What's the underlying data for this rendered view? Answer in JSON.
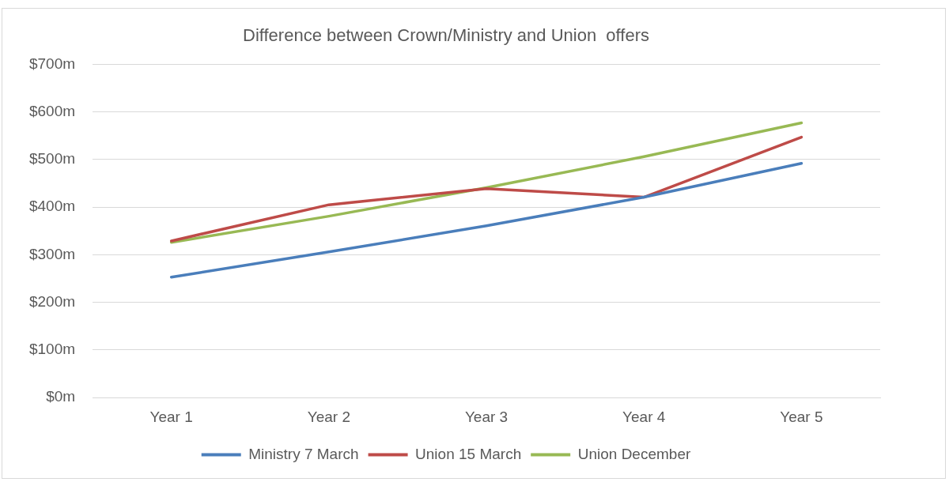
{
  "chart_data": {
    "type": "line",
    "title": "Difference between Crown/Ministry and Union  offers",
    "categories": [
      "Year 1",
      "Year 2",
      "Year 3",
      "Year 4",
      "Year 5"
    ],
    "series": [
      {
        "name": "Ministry 7 March",
        "color": "#4a7ebb",
        "values": [
          253,
          306,
          361,
          421,
          492
        ]
      },
      {
        "name": "Union 15 March",
        "color": "#be4b48",
        "values": [
          329,
          405,
          439,
          421,
          547
        ]
      },
      {
        "name": "Union December",
        "color": "#98b954",
        "values": [
          326,
          381,
          441,
          506,
          577
        ]
      }
    ],
    "ylim": [
      0,
      700
    ],
    "yticks": [
      {
        "value": 0,
        "label": "$0m"
      },
      {
        "value": 100,
        "label": "$100m"
      },
      {
        "value": 200,
        "label": "$200m"
      },
      {
        "value": 300,
        "label": "$300m"
      },
      {
        "value": 400,
        "label": "$400m"
      },
      {
        "value": 500,
        "label": "$500m"
      },
      {
        "value": 600,
        "label": "$600m"
      },
      {
        "value": 700,
        "label": "$700m"
      }
    ],
    "grid": "y",
    "legend": "bottom",
    "marker": "none",
    "line_style": "solid"
  }
}
